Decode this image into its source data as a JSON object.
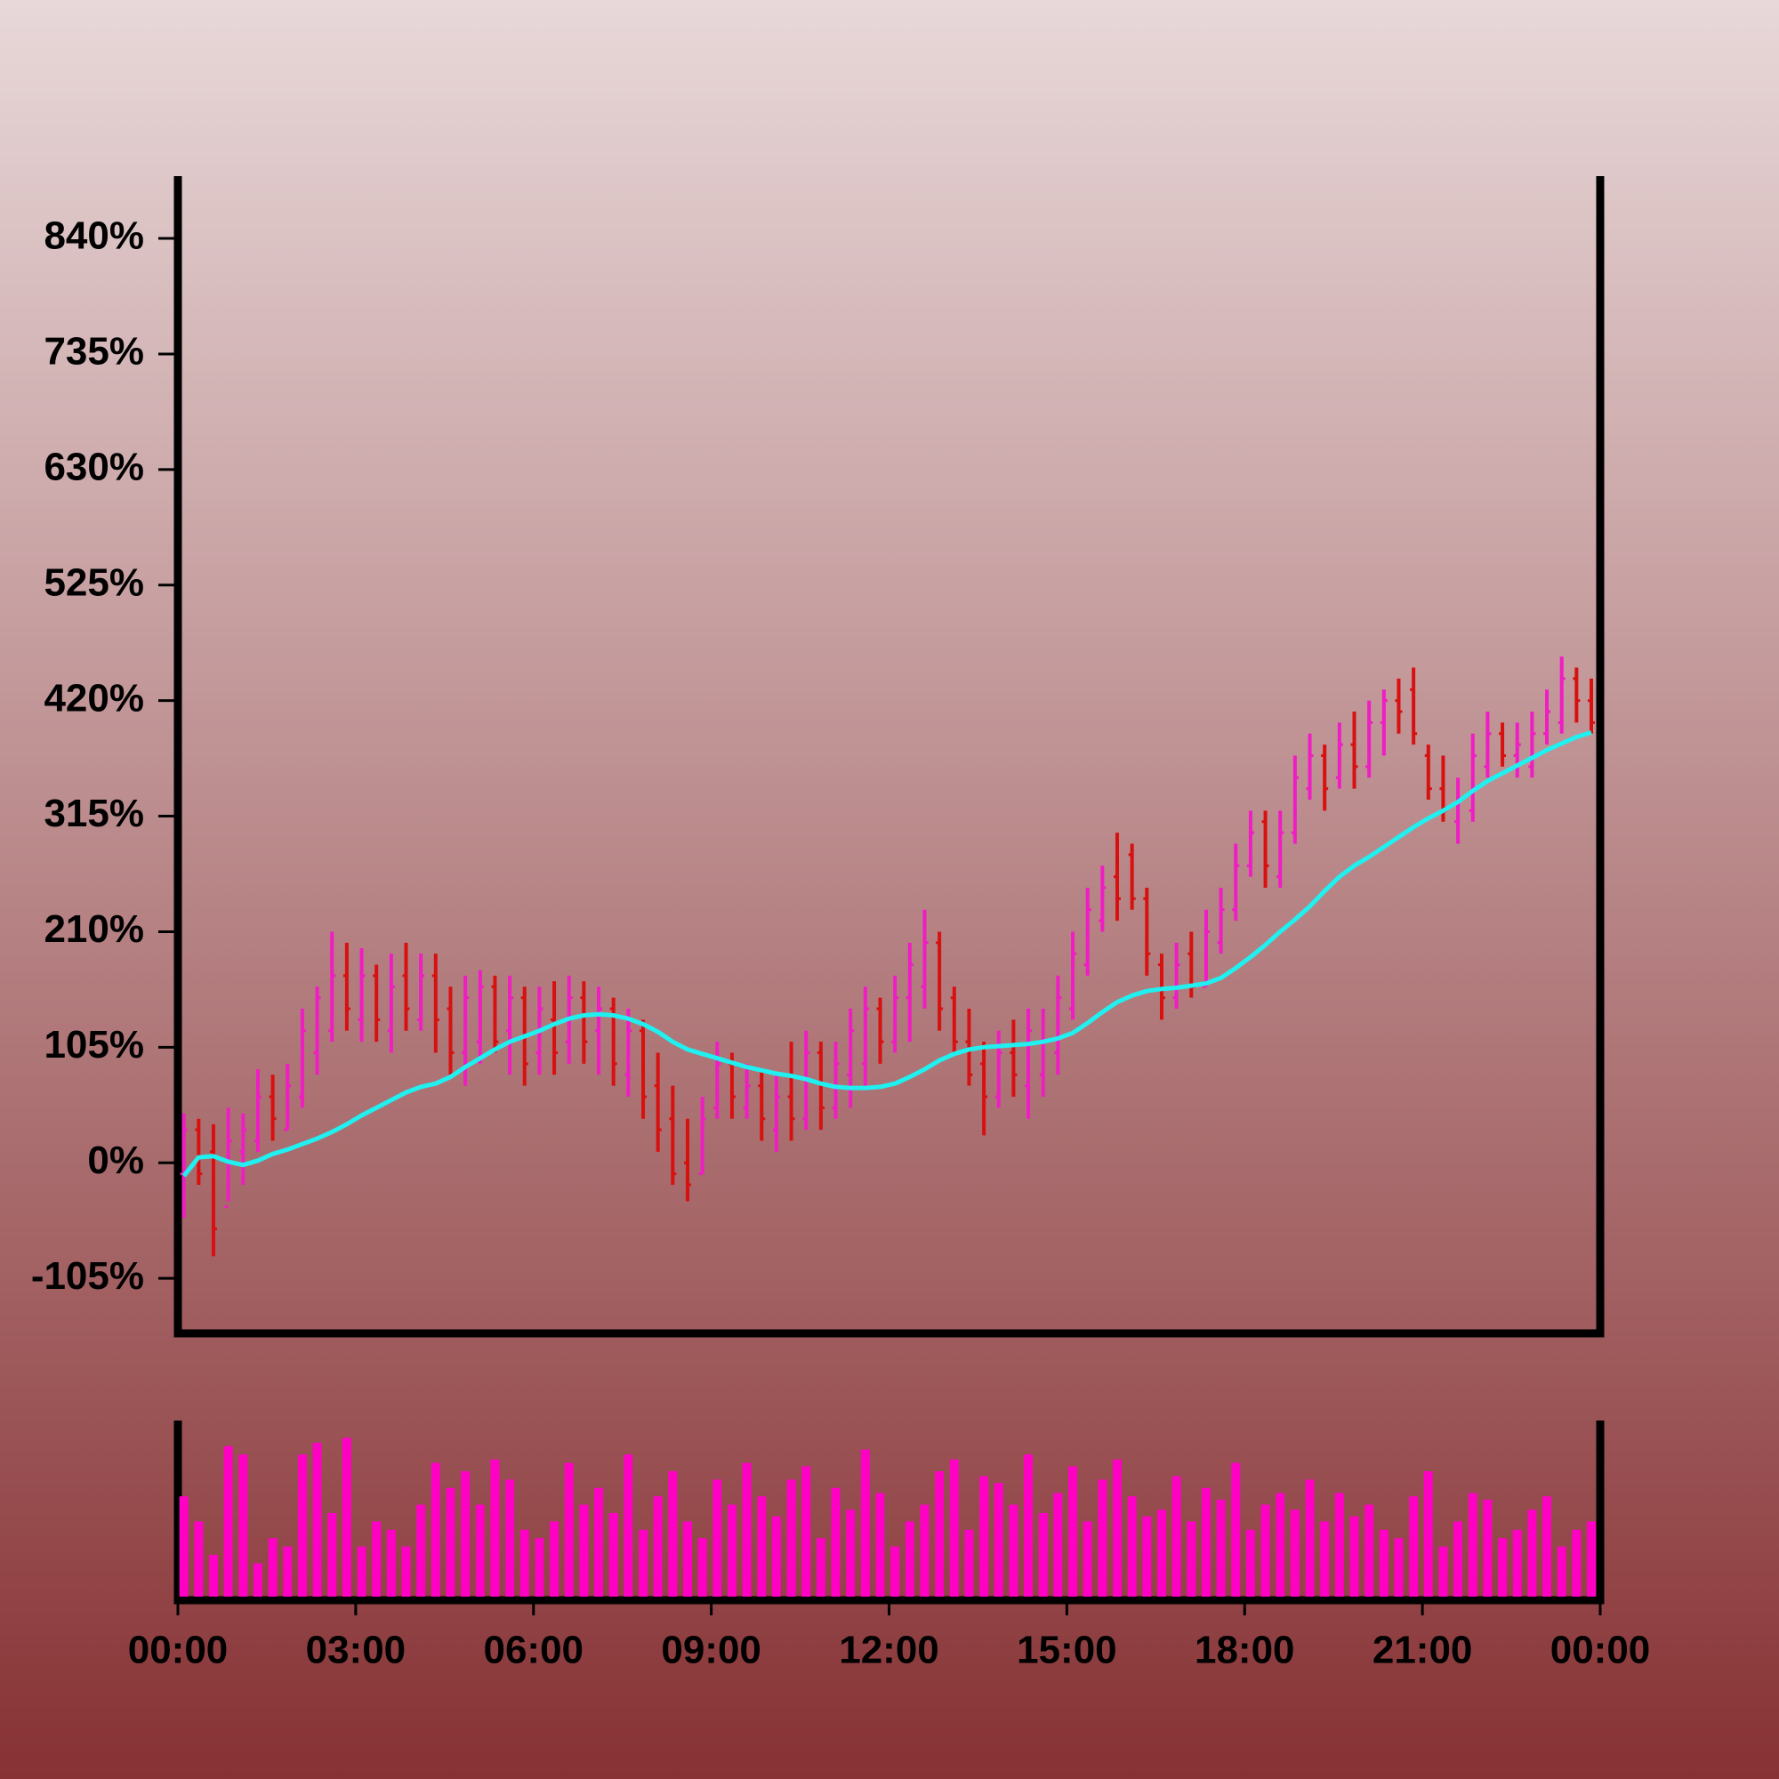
{
  "chart_data": {
    "type": "ohlc",
    "x": [
      0.1,
      0.35,
      0.6,
      0.85,
      1.1,
      1.35,
      1.6,
      1.85,
      2.1,
      2.35,
      2.6,
      2.85,
      3.1,
      3.35,
      3.6,
      3.85,
      4.1,
      4.35,
      4.6,
      4.85,
      5.1,
      5.35,
      5.6,
      5.85,
      6.1,
      6.35,
      6.6,
      6.85,
      7.1,
      7.35,
      7.6,
      7.85,
      8.1,
      8.35,
      8.6,
      8.85,
      9.1,
      9.35,
      9.6,
      9.85,
      10.1,
      10.35,
      10.6,
      10.85,
      11.1,
      11.35,
      11.6,
      11.85,
      12.1,
      12.35,
      12.6,
      12.85,
      13.1,
      13.35,
      13.6,
      13.85,
      14.1,
      14.35,
      14.6,
      14.85,
      15.1,
      15.35,
      15.6,
      15.85,
      16.1,
      16.35,
      16.6,
      16.85,
      17.1,
      17.35,
      17.6,
      17.85,
      18.1,
      18.35,
      18.6,
      18.85,
      19.1,
      19.35,
      19.6,
      19.85,
      20.1,
      20.35,
      20.6,
      20.85,
      21.1,
      21.35,
      21.6,
      21.85,
      22.1,
      22.35,
      22.6,
      22.85,
      23.1,
      23.35,
      23.6,
      23.85
    ],
    "open": [
      -10,
      30,
      10,
      -40,
      10,
      20,
      60,
      30,
      60,
      100,
      120,
      170,
      130,
      170,
      120,
      170,
      130,
      170,
      140,
      100,
      110,
      160,
      120,
      150,
      100,
      130,
      110,
      150,
      120,
      140,
      80,
      120,
      70,
      40,
      0,
      -10,
      50,
      90,
      50,
      70,
      30,
      60,
      40,
      100,
      50,
      80,
      90,
      140,
      110,
      150,
      160,
      200,
      150,
      110,
      90,
      60,
      100,
      70,
      80,
      100,
      140,
      180,
      220,
      260,
      280,
      240,
      180,
      150,
      190,
      160,
      200,
      230,
      270,
      310,
      260,
      300,
      340,
      370,
      350,
      380,
      360,
      400,
      420,
      430,
      370,
      340,
      310,
      320,
      360,
      390,
      370,
      360,
      390,
      400,
      440,
      420
    ],
    "high": [
      45,
      40,
      35,
      50,
      45,
      85,
      80,
      90,
      140,
      160,
      210,
      200,
      195,
      180,
      190,
      200,
      190,
      190,
      160,
      170,
      175,
      170,
      170,
      160,
      160,
      165,
      170,
      165,
      160,
      150,
      140,
      130,
      100,
      70,
      40,
      60,
      110,
      100,
      90,
      85,
      80,
      110,
      120,
      110,
      110,
      140,
      160,
      150,
      170,
      200,
      230,
      210,
      160,
      140,
      110,
      120,
      130,
      140,
      140,
      170,
      210,
      250,
      270,
      300,
      290,
      250,
      190,
      200,
      210,
      230,
      250,
      290,
      320,
      320,
      320,
      370,
      390,
      380,
      400,
      410,
      420,
      430,
      440,
      450,
      380,
      370,
      350,
      390,
      410,
      400,
      400,
      410,
      430,
      460,
      450,
      440
    ],
    "low": [
      -50,
      -20,
      -85,
      -35,
      -20,
      10,
      20,
      30,
      50,
      80,
      110,
      120,
      110,
      110,
      100,
      120,
      120,
      100,
      80,
      70,
      90,
      100,
      80,
      70,
      80,
      80,
      90,
      90,
      80,
      70,
      60,
      40,
      10,
      -20,
      -35,
      -10,
      40,
      40,
      40,
      20,
      10,
      20,
      30,
      30,
      40,
      50,
      70,
      90,
      100,
      110,
      140,
      120,
      100,
      70,
      25,
      50,
      60,
      40,
      60,
      80,
      130,
      170,
      210,
      220,
      230,
      170,
      130,
      140,
      150,
      160,
      190,
      220,
      260,
      250,
      250,
      290,
      330,
      320,
      340,
      340,
      350,
      370,
      390,
      380,
      330,
      310,
      290,
      310,
      350,
      360,
      350,
      350,
      380,
      390,
      400,
      390
    ],
    "close": [
      30,
      -10,
      -60,
      20,
      30,
      60,
      40,
      70,
      120,
      150,
      170,
      140,
      170,
      130,
      160,
      140,
      170,
      130,
      100,
      150,
      160,
      110,
      150,
      90,
      140,
      100,
      150,
      110,
      140,
      90,
      120,
      60,
      30,
      -10,
      -20,
      40,
      90,
      60,
      70,
      40,
      60,
      40,
      100,
      50,
      90,
      120,
      140,
      110,
      150,
      180,
      200,
      140,
      110,
      80,
      60,
      100,
      80,
      120,
      110,
      150,
      190,
      230,
      250,
      240,
      240,
      190,
      150,
      180,
      160,
      210,
      230,
      270,
      300,
      270,
      300,
      350,
      370,
      340,
      380,
      360,
      400,
      420,
      410,
      390,
      340,
      320,
      330,
      370,
      390,
      370,
      380,
      390,
      410,
      440,
      420,
      400
    ],
    "up_color": "#f01cc4",
    "down_color": "#d81010",
    "ma": {
      "color": "#20f0f0",
      "values": [
        -12,
        5,
        6,
        1,
        -2,
        2,
        8,
        12,
        17,
        22,
        28,
        35,
        43,
        50,
        57,
        64,
        69,
        72,
        78,
        87,
        95,
        103,
        110,
        115,
        120,
        126,
        131,
        134,
        135,
        134,
        131,
        126,
        119,
        110,
        103,
        99,
        95,
        91,
        87,
        84,
        81,
        79,
        76,
        72,
        69,
        68,
        68,
        69,
        72,
        78,
        85,
        93,
        99,
        103,
        105,
        106,
        107,
        108,
        110,
        113,
        118,
        127,
        137,
        146,
        152,
        156,
        158,
        159,
        161,
        163,
        168,
        177,
        187,
        198,
        210,
        221,
        233,
        247,
        260,
        270,
        278,
        287,
        296,
        305,
        313,
        320,
        328,
        338,
        347,
        354,
        361,
        368,
        375,
        381,
        387,
        391
      ]
    },
    "volume": {
      "color": "#ff00c4",
      "ylim": [
        0,
        100
      ],
      "values": [
        60,
        45,
        25,
        90,
        85,
        20,
        35,
        30,
        85,
        92,
        50,
        95,
        30,
        45,
        40,
        30,
        55,
        80,
        65,
        75,
        55,
        82,
        70,
        40,
        35,
        45,
        80,
        55,
        65,
        50,
        85,
        40,
        60,
        75,
        45,
        35,
        70,
        55,
        80,
        60,
        48,
        70,
        78,
        35,
        65,
        52,
        88,
        62,
        30,
        45,
        55,
        75,
        82,
        40,
        72,
        68,
        55,
        85,
        50,
        62,
        78,
        45,
        70,
        82,
        60,
        48,
        52,
        72,
        45,
        65,
        58,
        80,
        40,
        55,
        62,
        52,
        70,
        45,
        62,
        48,
        55,
        40,
        35,
        60,
        75,
        30,
        45,
        62,
        58,
        35,
        40,
        52,
        60,
        30,
        40,
        45
      ]
    },
    "xlim": [
      0,
      24
    ],
    "xticks": [
      {
        "value": 0,
        "label": "00:00"
      },
      {
        "value": 3,
        "label": "03:00"
      },
      {
        "value": 6,
        "label": "06:00"
      },
      {
        "value": 9,
        "label": "09:00"
      },
      {
        "value": 12,
        "label": "12:00"
      },
      {
        "value": 15,
        "label": "15:00"
      },
      {
        "value": 18,
        "label": "18:00"
      },
      {
        "value": 21,
        "label": "21:00"
      },
      {
        "value": 24,
        "label": "00:00"
      }
    ],
    "ylim": [
      -155,
      895
    ],
    "yticks": [
      {
        "value": -105,
        "label": "-105%"
      },
      {
        "value": 0,
        "label": "0%"
      },
      {
        "value": 105,
        "label": "105%"
      },
      {
        "value": 210,
        "label": "210%"
      },
      {
        "value": 315,
        "label": "315%"
      },
      {
        "value": 420,
        "label": "420%"
      },
      {
        "value": 525,
        "label": "525%"
      },
      {
        "value": 630,
        "label": "630%"
      },
      {
        "value": 735,
        "label": "735%"
      },
      {
        "value": 840,
        "label": "840%"
      }
    ]
  }
}
